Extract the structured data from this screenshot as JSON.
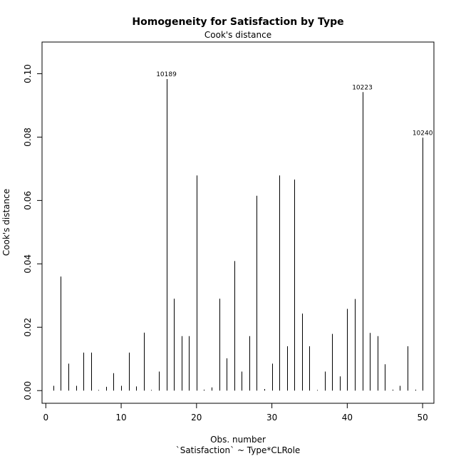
{
  "chart_data": {
    "type": "bar",
    "title": "Homogeneity for Satisfaction by Type",
    "subtitle": "Cook's distance",
    "xlabel": "Obs. number",
    "xlabel2": "`Satisfaction` ~ Type*CLRole",
    "ylabel": "Cook's distance",
    "xlim": [
      -0.5,
      51.5
    ],
    "ylim": [
      -0.004,
      0.11
    ],
    "xticks": [
      0,
      10,
      20,
      30,
      40,
      50
    ],
    "xtick_labels": [
      "0",
      "10",
      "20",
      "30",
      "40",
      "50"
    ],
    "yticks": [
      0.0,
      0.02,
      0.04,
      0.06,
      0.08,
      0.1
    ],
    "ytick_labels": [
      "0.00",
      "0.02",
      "0.04",
      "0.06",
      "0.08",
      "0.10"
    ],
    "grid": false,
    "x": [
      1,
      2,
      3,
      4,
      5,
      6,
      7,
      8,
      9,
      10,
      11,
      12,
      13,
      14,
      15,
      16,
      17,
      18,
      19,
      20,
      21,
      22,
      23,
      24,
      25,
      26,
      27,
      28,
      29,
      30,
      31,
      32,
      33,
      34,
      35,
      36,
      37,
      38,
      39,
      40,
      41,
      42,
      43,
      44,
      45,
      46,
      47,
      48,
      49,
      50
    ],
    "values": [
      0.0015,
      0.036,
      0.0085,
      0.0015,
      0.012,
      0.012,
      0.0002,
      0.0012,
      0.0055,
      0.0015,
      0.012,
      0.0013,
      0.0183,
      0.0002,
      0.006,
      0.0983,
      0.029,
      0.0172,
      0.0172,
      0.0679,
      0.0003,
      0.001,
      0.029,
      0.0102,
      0.0409,
      0.006,
      0.0172,
      0.0615,
      0.0005,
      0.0085,
      0.0679,
      0.014,
      0.0666,
      0.0243,
      0.014,
      0.0002,
      0.006,
      0.0179,
      0.0045,
      0.0258,
      0.0289,
      0.0942,
      0.0182,
      0.0172,
      0.0083,
      0.0003,
      0.0015,
      0.014,
      0.0003,
      0.0798
    ],
    "annotations": [
      {
        "x": 16,
        "y": 0.0983,
        "label": "10189"
      },
      {
        "x": 42,
        "y": 0.0942,
        "label": "10223"
      },
      {
        "x": 50,
        "y": 0.0798,
        "label": "10240"
      }
    ]
  }
}
